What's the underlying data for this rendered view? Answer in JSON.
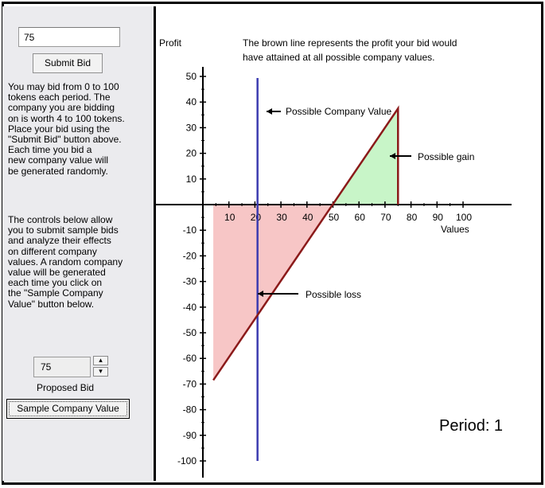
{
  "bid_field": {
    "value": "75"
  },
  "submit_button": {
    "label": "Submit Bid"
  },
  "instructions": {
    "paragraph1": "You may bid from 0 to 100\ntokens each period.  The\ncompany you are bidding\non is worth 4 to 100 tokens.\nPlace your bid using the\n\"Submit Bid\" button above.\nEach time you bid a\nnew company value will\nbe generated randomly.",
    "paragraph2": "The controls below allow\nyou to submit sample bids\nand analyze their effects\non different company\nvalues.  A random company\nvalue will be generated\neach time you click on\nthe \"Sample Company\nValue\" button below."
  },
  "proposed_bid": {
    "value": "75",
    "label": "Proposed Bid",
    "up_glyph": "▴",
    "down_glyph": "▾"
  },
  "sample_button": {
    "label": "Sample Company Value"
  },
  "period": {
    "text": "Period:  1"
  },
  "colors": {
    "profit_line": "#8b1a1a",
    "company_value_line": "#3b3bb0",
    "gain_fill": "#c8f5c8",
    "loss_fill": "#f7c6c6"
  },
  "chart_data": {
    "type": "line",
    "ylabel": "Profit",
    "xlabel": "Values",
    "title": "The brown line represents the profit your bid would\nhave attained at all possible company values.",
    "x_ticks": [
      10,
      20,
      30,
      40,
      50,
      60,
      70,
      80,
      90,
      100
    ],
    "y_ticks_positive": [
      50,
      40,
      30,
      20,
      10
    ],
    "y_ticks_negative": [
      -10,
      -20,
      -30,
      -40,
      -50,
      -60,
      -70,
      -80,
      -90,
      -100
    ],
    "xlim": [
      0,
      100
    ],
    "ylim": [
      -100,
      50
    ],
    "bid": 75,
    "company_value": 21,
    "profit_line": {
      "x": [
        4,
        75,
        75
      ],
      "y": [
        -68.5,
        37.5,
        0
      ]
    },
    "annotations": {
      "company_value": "Possible Company Value",
      "gain": "Possible gain",
      "loss": "Possible loss"
    }
  }
}
